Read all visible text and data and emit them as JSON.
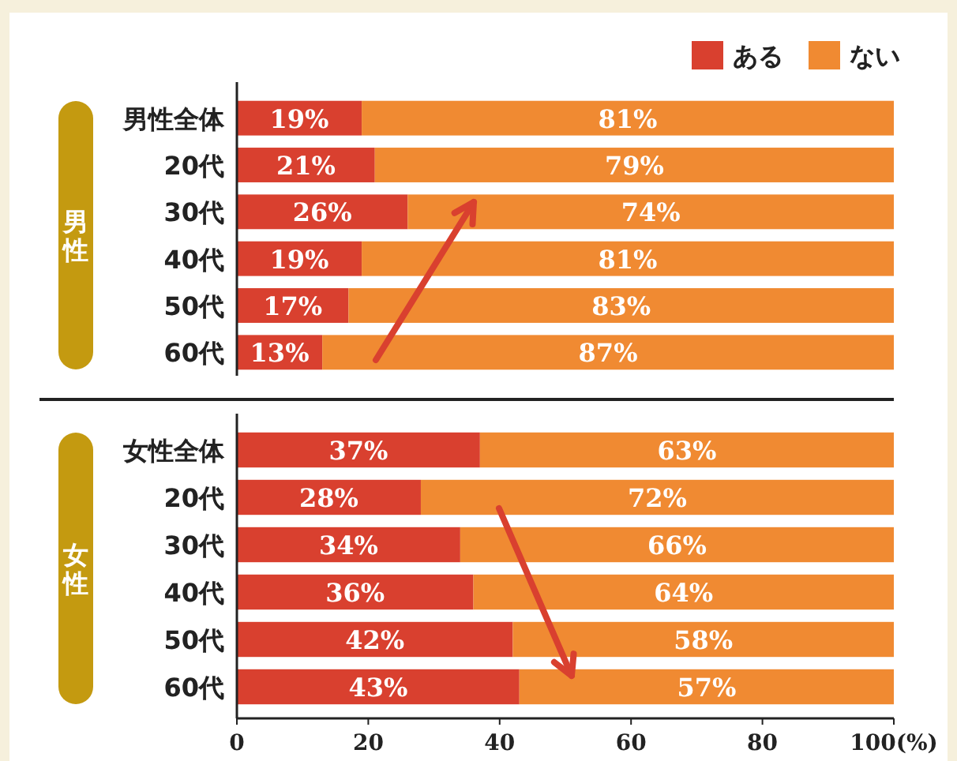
{
  "chart_data": [
    {
      "type": "bar",
      "orientation": "horizontal",
      "stacked": true,
      "ylabel": "男性",
      "legend": "top right",
      "tick_labels": "y",
      "categories": [
        "男性全体",
        "20代",
        "30代",
        "40代",
        "50代",
        "60代"
      ],
      "xlim": [
        0,
        100
      ],
      "series": [
        {
          "name": "ある",
          "color": "#d9402f",
          "values": [
            19,
            21,
            26,
            19,
            17,
            13
          ],
          "value_labels": [
            "19%",
            "21%",
            "26%",
            "19%",
            "17%",
            "13%"
          ]
        },
        {
          "name": "ない",
          "color": "#f08a32",
          "values": [
            81,
            79,
            74,
            81,
            83,
            87
          ],
          "value_labels": [
            "81%",
            "79%",
            "74%",
            "81%",
            "83%",
            "87%"
          ]
        }
      ]
    },
    {
      "type": "bar",
      "orientation": "horizontal",
      "stacked": true,
      "ylabel": "女性",
      "categories": [
        "女性全体",
        "20代",
        "30代",
        "40代",
        "50代",
        "60代"
      ],
      "xlim": [
        0,
        100
      ],
      "xticks": [
        0,
        20,
        40,
        60,
        80,
        {
          "value": 100,
          "label": "100(%)"
        }
      ],
      "series": [
        {
          "color": "#d9402f",
          "values": [
            37,
            28,
            34,
            36,
            42,
            43
          ],
          "value_labels": [
            "37%",
            "28%",
            "34%",
            "36%",
            "42%",
            "43%"
          ]
        },
        {
          "color": "#f08a32",
          "values": [
            63,
            72,
            66,
            64,
            58,
            57
          ],
          "value_labels": [
            "63%",
            "72%",
            "66%",
            "64%",
            "58%",
            "57%"
          ]
        }
      ]
    }
  ]
}
